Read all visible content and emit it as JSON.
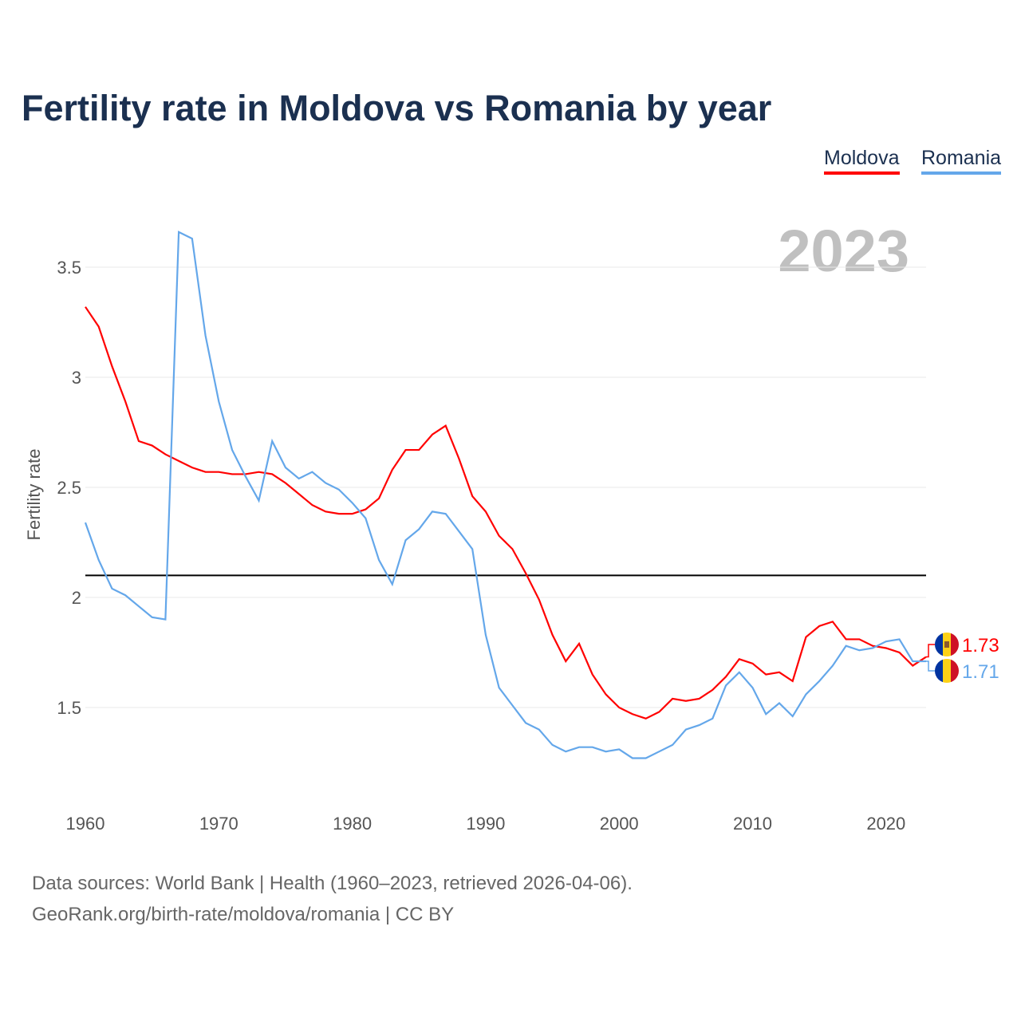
{
  "chart_data": {
    "type": "line",
    "title": "Fertility rate in Moldova vs Romania by year",
    "xlabel": "",
    "ylabel": "Fertility rate",
    "year_watermark": "2023",
    "xlim": [
      1960,
      2023
    ],
    "ylim": [
      1.2,
      3.75
    ],
    "x_ticks": [
      "1960",
      "1970",
      "1980",
      "1990",
      "2000",
      "2010",
      "2020"
    ],
    "y_ticks": [
      "1.5",
      "2",
      "2.5",
      "3",
      "3.5"
    ],
    "grid": true,
    "legend_position": "top-right",
    "reference_line": 2.1,
    "x": [
      1960,
      1961,
      1962,
      1963,
      1964,
      1965,
      1966,
      1967,
      1968,
      1969,
      1970,
      1971,
      1972,
      1973,
      1974,
      1975,
      1976,
      1977,
      1978,
      1979,
      1980,
      1981,
      1982,
      1983,
      1984,
      1985,
      1986,
      1987,
      1988,
      1989,
      1990,
      1991,
      1992,
      1993,
      1994,
      1995,
      1996,
      1997,
      1998,
      1999,
      2000,
      2001,
      2002,
      2003,
      2004,
      2005,
      2006,
      2007,
      2008,
      2009,
      2010,
      2011,
      2012,
      2013,
      2014,
      2015,
      2016,
      2017,
      2018,
      2019,
      2020,
      2021,
      2022,
      2023
    ],
    "series": [
      {
        "name": "Moldova",
        "color": "#ff0000",
        "end_label": "1.73",
        "values": [
          3.32,
          3.23,
          3.05,
          2.89,
          2.71,
          2.69,
          2.65,
          2.62,
          2.59,
          2.57,
          2.57,
          2.56,
          2.56,
          2.57,
          2.56,
          2.52,
          2.47,
          2.42,
          2.39,
          2.38,
          2.38,
          2.4,
          2.45,
          2.58,
          2.67,
          2.67,
          2.74,
          2.78,
          2.63,
          2.46,
          2.39,
          2.28,
          2.22,
          2.11,
          1.99,
          1.83,
          1.71,
          1.79,
          1.65,
          1.56,
          1.5,
          1.47,
          1.45,
          1.48,
          1.54,
          1.53,
          1.54,
          1.58,
          1.64,
          1.72,
          1.7,
          1.65,
          1.66,
          1.62,
          1.82,
          1.87,
          1.89,
          1.81,
          1.81,
          1.78,
          1.77,
          1.75,
          1.69,
          1.73
        ]
      },
      {
        "name": "Romania",
        "color": "#64a7ea",
        "end_label": "1.71",
        "values": [
          2.34,
          2.17,
          2.04,
          2.01,
          1.96,
          1.91,
          1.9,
          3.66,
          3.63,
          3.19,
          2.89,
          2.67,
          2.55,
          2.44,
          2.71,
          2.59,
          2.54,
          2.57,
          2.52,
          2.49,
          2.43,
          2.36,
          2.17,
          2.06,
          2.26,
          2.31,
          2.39,
          2.38,
          2.3,
          2.22,
          1.83,
          1.59,
          1.51,
          1.43,
          1.4,
          1.33,
          1.3,
          1.32,
          1.32,
          1.3,
          1.31,
          1.27,
          1.27,
          1.3,
          1.33,
          1.4,
          1.42,
          1.45,
          1.6,
          1.66,
          1.59,
          1.47,
          1.52,
          1.46,
          1.56,
          1.62,
          1.69,
          1.78,
          1.76,
          1.77,
          1.8,
          1.81,
          1.71,
          1.71
        ]
      }
    ]
  },
  "source": {
    "line1": "Data sources: World Bank | Health (1960–2023, retrieved 2026-04-06).",
    "line2": "GeoRank.org/birth-rate/moldova/romania | CC BY"
  }
}
